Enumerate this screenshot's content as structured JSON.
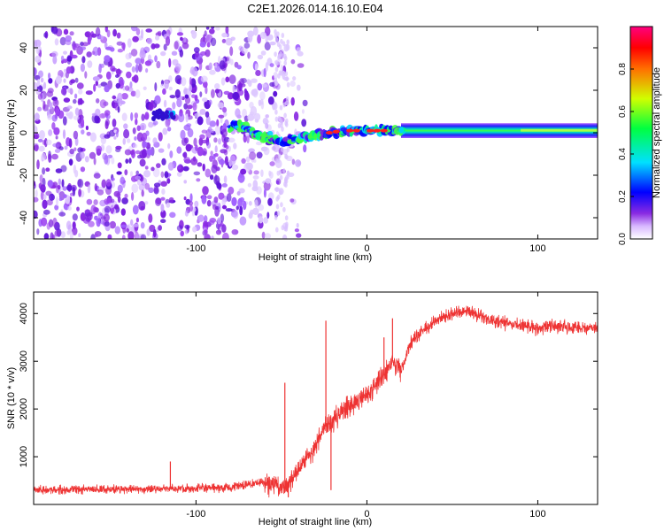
{
  "title": "C2E1.2026.014.16.10.E04",
  "chart_data": [
    {
      "type": "heatmap",
      "xlabel": "Height of straight line (km)",
      "ylabel": "Frequency (Hz)",
      "xlim": [
        -195,
        135
      ],
      "ylim": [
        -50,
        50
      ],
      "xticks": [
        -100,
        0,
        100
      ],
      "yticks": [
        -40,
        -20,
        0,
        20,
        40
      ],
      "colorbar": {
        "label": "Normalized spectral amplitude",
        "range": [
          0,
          1
        ],
        "ticks": [
          "0.0",
          "0.2",
          "0.4",
          "0.6",
          "0.8"
        ],
        "tick_values": [
          0.0,
          0.2,
          0.4,
          0.6,
          0.8
        ]
      },
      "description_points": {
        "noise_region_end_km": -30,
        "line_center_freq_hz": [
          [
            -75,
            3
          ],
          [
            -60,
            -2
          ],
          [
            -50,
            -4
          ],
          [
            -40,
            -3
          ],
          [
            -30,
            -1
          ],
          [
            -20,
            0
          ],
          [
            -10,
            1
          ],
          [
            0,
            1
          ],
          [
            20,
            1
          ],
          [
            60,
            1
          ],
          [
            100,
            1
          ],
          [
            135,
            1
          ]
        ]
      }
    },
    {
      "type": "line",
      "xlabel": "Height of straight line (km)",
      "ylabel": "SNR (10 * v/v)",
      "xlim": [
        -195,
        135
      ],
      "ylim": [
        0,
        4450
      ],
      "xticks": [
        -100,
        0,
        100
      ],
      "yticks": [
        1000,
        2000,
        3000,
        4000
      ],
      "color": "#ee3333",
      "envelope": {
        "x": [
          -195,
          -150,
          -110,
          -80,
          -60,
          -50,
          -45,
          -40,
          -35,
          -30,
          -25,
          -20,
          -10,
          0,
          10,
          15,
          20,
          25,
          30,
          40,
          50,
          60,
          70,
          80,
          90,
          100,
          110,
          120,
          135
        ],
        "mean": [
          300,
          320,
          330,
          350,
          480,
          350,
          480,
          750,
          1000,
          1200,
          1600,
          1750,
          2100,
          2300,
          2700,
          3000,
          2800,
          3350,
          3550,
          3850,
          3980,
          4050,
          3900,
          3800,
          3750,
          3700,
          3750,
          3700,
          3700
        ]
      },
      "spikes": [
        {
          "x": -48,
          "y": 2550
        },
        {
          "x": -46,
          "y": 150
        },
        {
          "x": -24,
          "y": 3850
        },
        {
          "x": -21,
          "y": 300
        },
        {
          "x": 10,
          "y": 3500
        },
        {
          "x": 15,
          "y": 3900
        },
        {
          "x": -115,
          "y": 900
        }
      ]
    }
  ]
}
